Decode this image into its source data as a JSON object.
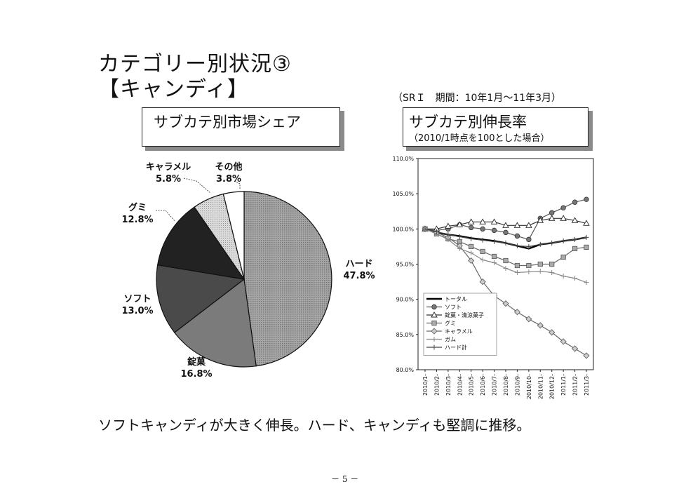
{
  "page": {
    "title_line1": "カテゴリー別状況③",
    "title_line2": "【キャンディ】",
    "meta": "（SRＩ　期間：10年1月～11年3月）",
    "caption": "ソフトキャンディが大きく伸長。ハード、キャンディも堅調に推移。",
    "page_number": "－ 5 －"
  },
  "chart_data": [
    {
      "type": "pie",
      "title": "サブカテ別市場シェア",
      "slices": [
        {
          "label": "ハード",
          "value": 47.8,
          "value_label": "47.8%",
          "color": "#9a9a9a",
          "pattern": "hatch"
        },
        {
          "label": "錠菓",
          "value": 16.8,
          "value_label": "16.8%",
          "color": "#7b7b7b",
          "pattern": "solid"
        },
        {
          "label": "ソフト",
          "value": 13.0,
          "value_label": "13.0%",
          "color": "#4a4a4a",
          "pattern": "solid"
        },
        {
          "label": "グミ",
          "value": 12.8,
          "value_label": "12.8%",
          "color": "#222222",
          "pattern": "solid"
        },
        {
          "label": "キャラメル",
          "value": 5.8,
          "value_label": "5.8%",
          "color": "#cfcfcf",
          "pattern": "dots"
        },
        {
          "label": "その他",
          "value": 3.8,
          "value_label": "3.8%",
          "color": "#ffffff",
          "pattern": "solid"
        }
      ]
    },
    {
      "type": "line",
      "title": "サブカテ別伸長率",
      "subtitle": "（2010/1時点を100とした場合）",
      "categories": [
        "2010/1-",
        "2010/2-",
        "2010/3-",
        "2010/4-",
        "2010/5-",
        "2010/6-",
        "2010/7-",
        "2010/8-",
        "2010/9-",
        "2010/10-",
        "2010/11-",
        "2010/12-",
        "2011/1-",
        "2011/2-",
        "2011/3-"
      ],
      "yticks": [
        "110.0%",
        "105.0%",
        "100.0%",
        "95.0%",
        "90.0%",
        "85.0%",
        "80.0%"
      ],
      "ylim": [
        80,
        110
      ],
      "grid": false,
      "legend_position": "bottom-left",
      "series": [
        {
          "name": "トータル",
          "marker": "none",
          "color": "#000000",
          "width": 2.4,
          "values": [
            100.0,
            99.5,
            99.2,
            99.0,
            98.7,
            98.5,
            98.3,
            98.0,
            97.6,
            97.2,
            97.8,
            98.0,
            98.3,
            98.5,
            98.8
          ]
        },
        {
          "name": "ソフト",
          "marker": "circle",
          "color": "#555555",
          "width": 1.2,
          "values": [
            100.0,
            99.8,
            100.0,
            100.6,
            100.2,
            100.0,
            99.8,
            99.5,
            99.0,
            98.5,
            101.5,
            102.3,
            103.0,
            103.8,
            104.2
          ]
        },
        {
          "name": "錠菓・清涼菓子",
          "marker": "triangle",
          "color": "#333333",
          "width": 1.2,
          "values": [
            100.0,
            100.0,
            100.4,
            100.6,
            101.0,
            101.0,
            101.0,
            100.5,
            100.5,
            100.5,
            101.2,
            101.5,
            101.5,
            101.2,
            100.8
          ]
        },
        {
          "name": "グミ",
          "marker": "square",
          "color": "#666666",
          "width": 1.2,
          "values": [
            100.0,
            99.3,
            98.6,
            98.2,
            97.5,
            96.8,
            96.1,
            95.5,
            94.8,
            94.8,
            95.0,
            95.0,
            96.0,
            97.2,
            97.4
          ]
        },
        {
          "name": "キャラメル",
          "marker": "diamond",
          "color": "#666666",
          "width": 1.2,
          "values": [
            100.0,
            99.5,
            98.8,
            97.6,
            95.5,
            92.5,
            90.5,
            89.4,
            88.2,
            87.2,
            86.3,
            85.3,
            84.0,
            83.0,
            82.0
          ]
        },
        {
          "name": "ガム",
          "marker": "plus",
          "color": "#888888",
          "width": 1.2,
          "values": [
            100.0,
            99.3,
            98.5,
            97.2,
            96.6,
            95.6,
            95.2,
            94.4,
            93.8,
            93.9,
            94.0,
            93.8,
            93.3,
            93.0,
            92.4
          ]
        },
        {
          "name": "ハード計",
          "marker": "plus",
          "color": "#444444",
          "width": 1.2,
          "values": [
            100.0,
            99.6,
            99.2,
            98.9,
            98.6,
            98.4,
            98.2,
            98.0,
            97.6,
            97.5,
            97.8,
            98.0,
            98.3,
            98.5,
            98.8
          ]
        }
      ]
    }
  ]
}
